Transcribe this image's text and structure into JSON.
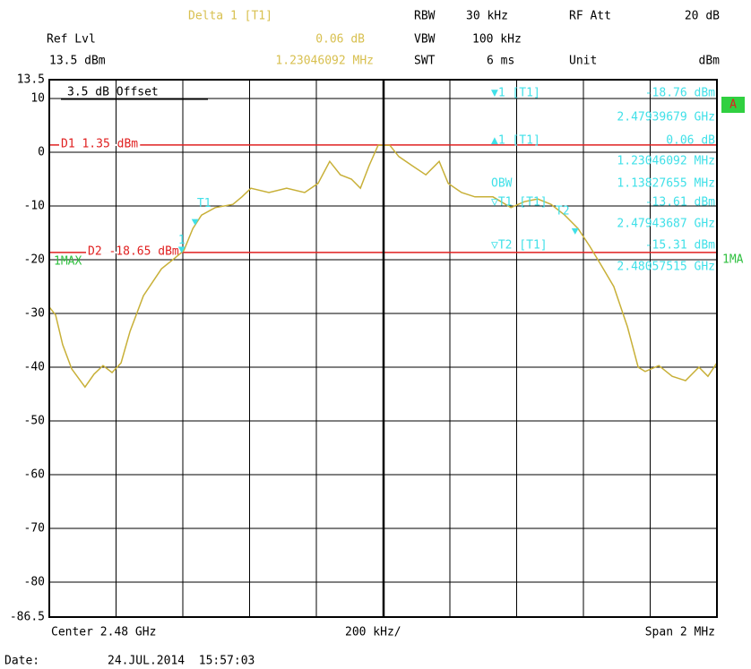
{
  "header": {
    "delta": "Delta 1 [T1]",
    "delta_level": "0.06 dB",
    "delta_freq": "1.23046092 MHz",
    "ref_lvl_label": "Ref Lvl",
    "ref_lvl": "13.5 dBm",
    "rbw_label": "RBW",
    "rbw": "30 kHz",
    "vbw_label": "VBW",
    "vbw": "100 kHz",
    "swt_label": "SWT",
    "swt": "6 ms",
    "rf_att_label": "RF Att",
    "rf_att": "20 dB",
    "unit_label": "Unit",
    "unit": "dBm"
  },
  "footer": {
    "center": "Center 2.48 GHz",
    "div": "200 kHz/",
    "span": "Span 2 MHz",
    "date_label": "Date:",
    "date": "24.JUL.2014  15:57:03"
  },
  "chart_data": {
    "type": "line",
    "offset_label": "3.5 dB Offset",
    "trace_label_right": "1MA",
    "screen_label": "A",
    "xlim": [
      2.479,
      2.481
    ],
    "ylim": [
      -86.5,
      13.5
    ],
    "yticks": [
      13.5,
      10,
      0,
      -10,
      -20,
      -30,
      -40,
      -50,
      -60,
      -70,
      -80,
      -86.5
    ],
    "grid": true,
    "x": [
      2.479,
      2.479019,
      2.47904,
      2.479067,
      2.479107,
      2.479134,
      2.479161,
      2.479188,
      2.479215,
      2.479242,
      2.479282,
      2.479336,
      2.479376,
      2.479403,
      2.47943,
      2.479456,
      2.479497,
      2.47955,
      2.479577,
      2.479604,
      2.479658,
      2.479711,
      2.479765,
      2.479805,
      2.47984,
      2.479872,
      2.479905,
      2.479932,
      2.479958,
      2.479985,
      2.48002,
      2.480047,
      2.480087,
      2.480128,
      2.480168,
      2.480195,
      2.480235,
      2.480275,
      2.480329,
      2.480383,
      2.480423,
      2.480463,
      2.480503,
      2.480544,
      2.480584,
      2.480619,
      2.480651,
      2.480691,
      2.480732,
      2.480764,
      2.480785,
      2.480826,
      2.480866,
      2.480906,
      2.480946,
      2.480973,
      2.481
    ],
    "series": [
      {
        "name": "1MAX",
        "color": "#c8b038",
        "values": [
          -28.8,
          -30.3,
          -35.8,
          -40.3,
          -43.7,
          -41.3,
          -39.7,
          -41,
          -39.2,
          -33.3,
          -26.7,
          -21.7,
          -19.7,
          -18.3,
          -14.2,
          -11.7,
          -10.3,
          -9.7,
          -8.3,
          -6.7,
          -7.5,
          -6.7,
          -7.5,
          -5.8,
          -1.7,
          -4.2,
          -5,
          -6.7,
          -2.5,
          1.3,
          1.3,
          -0.8,
          -2.5,
          -4.2,
          -1.7,
          -5.8,
          -7.5,
          -8.3,
          -8.3,
          -10.3,
          -9.2,
          -8.7,
          -9.7,
          -11.7,
          -14.2,
          -17.5,
          -20.8,
          -25,
          -32.5,
          -40,
          -40.8,
          -39.7,
          -41.7,
          -42.5,
          -40,
          -41.7,
          -39.2
        ]
      }
    ],
    "ref_lines": [
      {
        "label": "D1 1.35 dBm",
        "value": 1.35,
        "color": "#e02020"
      },
      {
        "label": "D2 -18.65 dBm",
        "value": -18.65,
        "color": "#e02020"
      }
    ],
    "markers": [
      {
        "label": "1",
        "x": 2.47939679,
        "y": -18.76
      },
      {
        "label": "T1",
        "x": 2.47943687,
        "y": -13.61
      },
      {
        "label": "T2",
        "x": 2.48057515,
        "y": -15.31
      }
    ],
    "marker_color": "#40e0e8",
    "marker_table": [
      {
        "label": "▼1 [T1]",
        "value": "-18.76 dBm"
      },
      {
        "value": "2.47939679 GHz"
      },
      {
        "label": "▲1 [T1]",
        "value": "0.06 dB"
      },
      {
        "value": "1.23046092 MHz"
      },
      {
        "label": "OBW",
        "value": "1.13827655 MHz"
      },
      {
        "label": "▽T1 [T1]",
        "value": "-13.61 dBm"
      },
      {
        "value": "2.47943687 GHz"
      },
      {
        "label": "▽T2 [T1]",
        "value": "-15.31 dBm"
      },
      {
        "value": "2.48057515 GHz"
      }
    ]
  }
}
